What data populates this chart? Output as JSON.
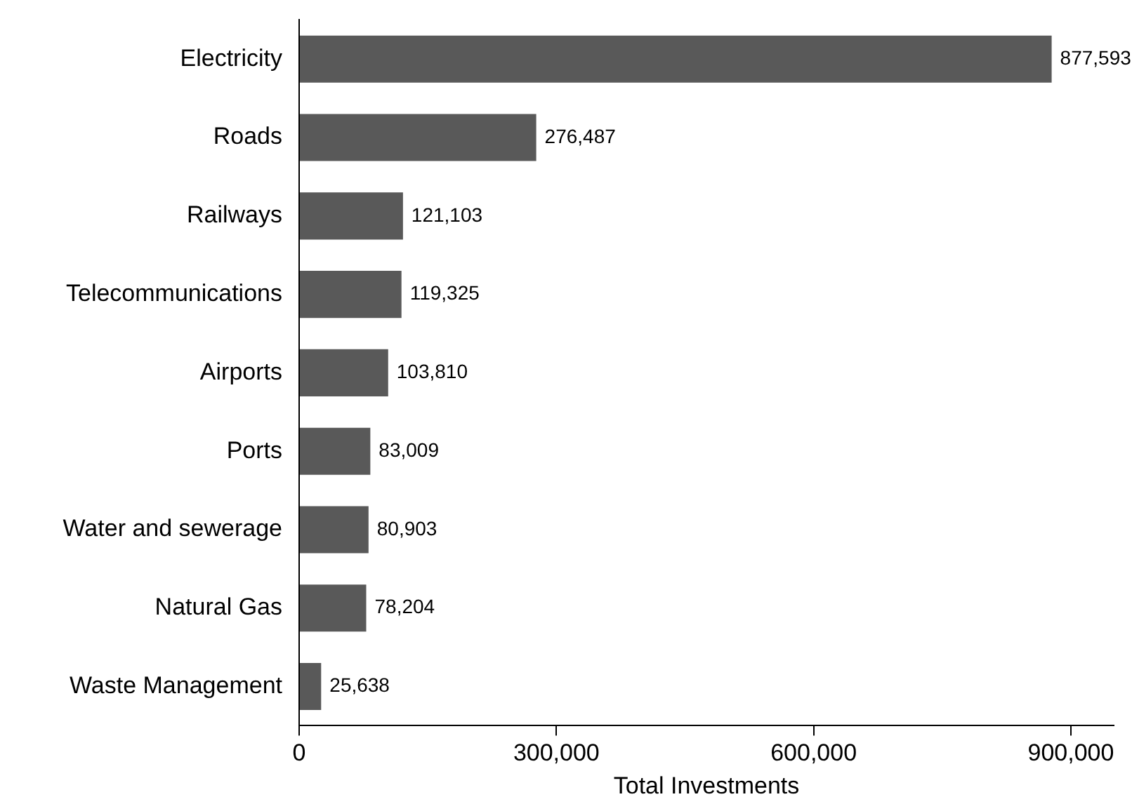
{
  "chart_data": {
    "type": "bar",
    "orientation": "horizontal",
    "xlabel": "Total Investments",
    "categories": [
      "Electricity",
      "Roads",
      "Railways",
      "Telecommunications",
      "Airports",
      "Ports",
      "Water and sewerage",
      "Natural Gas",
      "Waste Management"
    ],
    "values": [
      877593,
      276487,
      121103,
      119325,
      103810,
      83009,
      80903,
      78204,
      25638
    ],
    "value_labels": [
      "877,593",
      "276,487",
      "121,103",
      "119,325",
      "103,810",
      "83,009",
      "80,903",
      "78,204",
      "25,638"
    ],
    "color": "#595959",
    "xlim": [
      0,
      950000
    ],
    "xticks": [
      0,
      {
        "value": 300000,
        "label": "300,000"
      },
      {
        "value": 600000,
        "label": "600,000"
      },
      {
        "value": 900000,
        "label": "900,000"
      }
    ],
    "grid": false,
    "legend": false
  }
}
